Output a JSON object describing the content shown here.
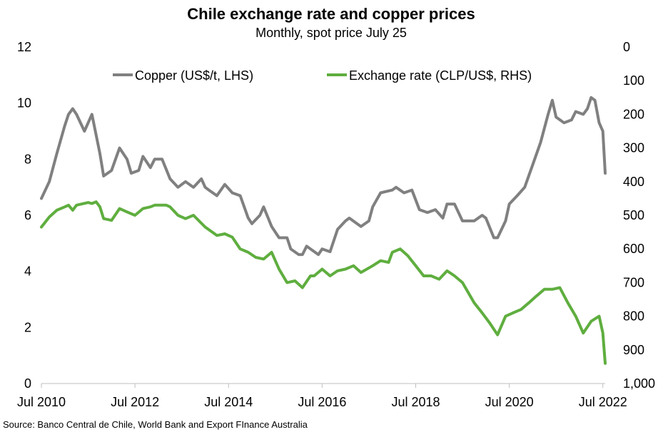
{
  "chart_data": {
    "type": "line",
    "title": "Chile exchange rate and copper prices",
    "subtitle": "Monthly, spot price July 25",
    "source": "Source: Banco Central de Chile, World Bank and Export FInance Australia",
    "x_tick_labels": [
      "Jul 2010",
      "Jul 2012",
      "Jul 2014",
      "Jul 2016",
      "Jul 2018",
      "Jul 2020",
      "Jul 2022"
    ],
    "x_tick_years": [
      2010,
      2012,
      2014,
      2016,
      2018,
      2020,
      2022
    ],
    "xlim": [
      2010.5,
      2022.55
    ],
    "left_axis": {
      "ylim": [
        0,
        12
      ],
      "ticks": [
        0,
        2,
        4,
        6,
        8,
        10,
        12
      ],
      "tick_labels": [
        "0",
        "2",
        "4",
        "6",
        "8",
        "10",
        "12"
      ]
    },
    "right_axis": {
      "ylim": [
        0,
        1000
      ],
      "inverted": true,
      "ticks": [
        0,
        100,
        200,
        300,
        400,
        500,
        600,
        700,
        800,
        900,
        1000
      ],
      "tick_labels": [
        "0",
        "100",
        "200",
        "300",
        "400",
        "500",
        "600",
        "700",
        "800",
        "900",
        "1,000"
      ]
    },
    "legend_position": "top",
    "series": [
      {
        "name": "Copper (US$/t, LHS)",
        "axis": "left",
        "color": "#808080",
        "points": [
          [
            2010.5,
            6.6
          ],
          [
            2010.67,
            7.2
          ],
          [
            2010.83,
            8.2
          ],
          [
            2011.0,
            9.2
          ],
          [
            2011.08,
            9.6
          ],
          [
            2011.17,
            9.8
          ],
          [
            2011.25,
            9.6
          ],
          [
            2011.42,
            9.0
          ],
          [
            2011.58,
            9.6
          ],
          [
            2011.75,
            8.2
          ],
          [
            2011.83,
            7.4
          ],
          [
            2012.0,
            7.6
          ],
          [
            2012.17,
            8.4
          ],
          [
            2012.33,
            8.0
          ],
          [
            2012.42,
            7.5
          ],
          [
            2012.58,
            7.6
          ],
          [
            2012.67,
            8.1
          ],
          [
            2012.83,
            7.7
          ],
          [
            2012.92,
            8.0
          ],
          [
            2013.08,
            8.0
          ],
          [
            2013.25,
            7.3
          ],
          [
            2013.42,
            7.0
          ],
          [
            2013.58,
            7.2
          ],
          [
            2013.75,
            7.0
          ],
          [
            2013.92,
            7.3
          ],
          [
            2014.0,
            7.0
          ],
          [
            2014.08,
            6.9
          ],
          [
            2014.25,
            6.7
          ],
          [
            2014.42,
            7.1
          ],
          [
            2014.58,
            6.8
          ],
          [
            2014.75,
            6.7
          ],
          [
            2014.92,
            5.9
          ],
          [
            2015.0,
            5.7
          ],
          [
            2015.17,
            6.0
          ],
          [
            2015.25,
            6.3
          ],
          [
            2015.42,
            5.6
          ],
          [
            2015.58,
            5.2
          ],
          [
            2015.75,
            5.2
          ],
          [
            2015.83,
            4.8
          ],
          [
            2016.0,
            4.6
          ],
          [
            2016.08,
            4.6
          ],
          [
            2016.17,
            4.9
          ],
          [
            2016.25,
            4.8
          ],
          [
            2016.42,
            4.6
          ],
          [
            2016.5,
            4.8
          ],
          [
            2016.67,
            4.7
          ],
          [
            2016.83,
            5.5
          ],
          [
            2017.0,
            5.8
          ],
          [
            2017.08,
            5.9
          ],
          [
            2017.33,
            5.6
          ],
          [
            2017.5,
            5.8
          ],
          [
            2017.58,
            6.3
          ],
          [
            2017.75,
            6.8
          ],
          [
            2018.0,
            6.9
          ],
          [
            2018.08,
            7.0
          ],
          [
            2018.25,
            6.8
          ],
          [
            2018.42,
            6.9
          ],
          [
            2018.58,
            6.2
          ],
          [
            2018.75,
            6.1
          ],
          [
            2018.92,
            6.2
          ],
          [
            2019.08,
            5.9
          ],
          [
            2019.17,
            6.4
          ],
          [
            2019.33,
            6.4
          ],
          [
            2019.5,
            5.8
          ],
          [
            2019.67,
            5.8
          ],
          [
            2019.75,
            5.8
          ],
          [
            2019.92,
            6.0
          ],
          [
            2020.0,
            5.9
          ],
          [
            2020.17,
            5.2
          ],
          [
            2020.25,
            5.2
          ],
          [
            2020.42,
            5.8
          ],
          [
            2020.5,
            6.4
          ],
          [
            2020.67,
            6.7
          ],
          [
            2020.83,
            7.0
          ],
          [
            2021.0,
            7.8
          ],
          [
            2021.17,
            8.6
          ],
          [
            2021.33,
            9.6
          ],
          [
            2021.42,
            10.1
          ],
          [
            2021.5,
            9.5
          ],
          [
            2021.67,
            9.3
          ],
          [
            2021.83,
            9.4
          ],
          [
            2021.92,
            9.7
          ],
          [
            2022.08,
            9.6
          ],
          [
            2022.17,
            9.8
          ],
          [
            2022.25,
            10.2
          ],
          [
            2022.33,
            10.1
          ],
          [
            2022.42,
            9.3
          ],
          [
            2022.5,
            9.0
          ],
          [
            2022.55,
            7.5
          ]
        ]
      },
      {
        "name": "Exchange rate (CLP/US$, RHS)",
        "axis": "right",
        "color": "#5fae3f",
        "points": [
          [
            2010.5,
            535
          ],
          [
            2010.67,
            505
          ],
          [
            2010.83,
            485
          ],
          [
            2011.0,
            475
          ],
          [
            2011.08,
            470
          ],
          [
            2011.17,
            485
          ],
          [
            2011.25,
            470
          ],
          [
            2011.5,
            462
          ],
          [
            2011.58,
            465
          ],
          [
            2011.67,
            460
          ],
          [
            2011.75,
            475
          ],
          [
            2011.83,
            510
          ],
          [
            2012.0,
            515
          ],
          [
            2012.17,
            480
          ],
          [
            2012.33,
            490
          ],
          [
            2012.5,
            500
          ],
          [
            2012.67,
            480
          ],
          [
            2012.83,
            475
          ],
          [
            2012.92,
            470
          ],
          [
            2013.17,
            470
          ],
          [
            2013.25,
            475
          ],
          [
            2013.42,
            500
          ],
          [
            2013.58,
            510
          ],
          [
            2013.75,
            500
          ],
          [
            2014.0,
            535
          ],
          [
            2014.25,
            560
          ],
          [
            2014.42,
            555
          ],
          [
            2014.58,
            565
          ],
          [
            2014.75,
            600
          ],
          [
            2014.92,
            610
          ],
          [
            2015.08,
            625
          ],
          [
            2015.25,
            630
          ],
          [
            2015.42,
            610
          ],
          [
            2015.58,
            660
          ],
          [
            2015.75,
            700
          ],
          [
            2015.92,
            695
          ],
          [
            2016.08,
            715
          ],
          [
            2016.25,
            680
          ],
          [
            2016.33,
            680
          ],
          [
            2016.5,
            660
          ],
          [
            2016.67,
            680
          ],
          [
            2016.83,
            665
          ],
          [
            2017.0,
            660
          ],
          [
            2017.17,
            650
          ],
          [
            2017.33,
            670
          ],
          [
            2017.58,
            650
          ],
          [
            2017.75,
            635
          ],
          [
            2017.92,
            640
          ],
          [
            2018.0,
            610
          ],
          [
            2018.17,
            600
          ],
          [
            2018.33,
            620
          ],
          [
            2018.5,
            650
          ],
          [
            2018.67,
            680
          ],
          [
            2018.83,
            680
          ],
          [
            2019.0,
            690
          ],
          [
            2019.17,
            665
          ],
          [
            2019.33,
            680
          ],
          [
            2019.5,
            700
          ],
          [
            2019.75,
            760
          ],
          [
            2019.92,
            790
          ],
          [
            2020.08,
            820
          ],
          [
            2020.25,
            855
          ],
          [
            2020.42,
            800
          ],
          [
            2020.58,
            790
          ],
          [
            2020.75,
            780
          ],
          [
            2020.92,
            760
          ],
          [
            2021.08,
            740
          ],
          [
            2021.25,
            720
          ],
          [
            2021.42,
            720
          ],
          [
            2021.58,
            715
          ],
          [
            2021.75,
            760
          ],
          [
            2021.92,
            800
          ],
          [
            2022.08,
            850
          ],
          [
            2022.25,
            815
          ],
          [
            2022.42,
            800
          ],
          [
            2022.5,
            850
          ],
          [
            2022.55,
            940
          ]
        ]
      }
    ]
  }
}
